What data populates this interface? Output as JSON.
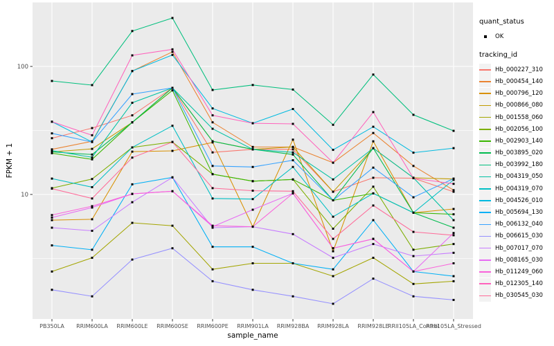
{
  "figure": {
    "background": "#FFFFFF",
    "panel_background": "#EBEBEB",
    "grid_color": "#FFFFFF",
    "tick_label_color": "#4D4D4D",
    "tick_mark_color": "#333333",
    "point_color": "#000000"
  },
  "axes": {
    "x": {
      "title": "sample_name",
      "tick_labels": [
        "PB350LA",
        "RRIM600LA",
        "RRIM600LE",
        "RRIM600SE",
        "RRIM600PE",
        "RRIM901LA",
        "RRIM928BA",
        "RRIM928LA",
        "RRIM928LE",
        "RRII105LA_Control",
        "RRII105LA_Stressed"
      ]
    },
    "y": {
      "title": "FPKM + 1",
      "tick_labels": [
        "100",
        "10"
      ],
      "tick_values": [
        100,
        10
      ],
      "scale": "log10"
    }
  },
  "legend": {
    "quant_status": {
      "title": "quant_status",
      "items": [
        {
          "label": "OK",
          "symbol": "filled-point",
          "color": "#000000"
        }
      ]
    },
    "tracking_id": {
      "title": "tracking_id",
      "items": [
        {
          "label": "Hb_000227_310",
          "color": "#F8766D"
        },
        {
          "label": "Hb_000454_140",
          "color": "#EA8331"
        },
        {
          "label": "Hb_000796_120",
          "color": "#D89000"
        },
        {
          "label": "Hb_000866_080",
          "color": "#C09B00"
        },
        {
          "label": "Hb_001558_060",
          "color": "#A3A500"
        },
        {
          "label": "Hb_002056_100",
          "color": "#7CAE00"
        },
        {
          "label": "Hb_002903_140",
          "color": "#39B600"
        },
        {
          "label": "Hb_003895_020",
          "color": "#00BB4E"
        },
        {
          "label": "Hb_003992_180",
          "color": "#00BF7D"
        },
        {
          "label": "Hb_004319_050",
          "color": "#00C1A3"
        },
        {
          "label": "Hb_004319_070",
          "color": "#00BFC4"
        },
        {
          "label": "Hb_004526_010",
          "color": "#00BAE0"
        },
        {
          "label": "Hb_005694_130",
          "color": "#00B0F6"
        },
        {
          "label": "Hb_006132_040",
          "color": "#35A2FF"
        },
        {
          "label": "Hb_006615_030",
          "color": "#9590FF"
        },
        {
          "label": "Hb_007017_070",
          "color": "#C77CFF"
        },
        {
          "label": "Hb_008165_030",
          "color": "#E76BF3"
        },
        {
          "label": "Hb_011249_060",
          "color": "#FA62DB"
        },
        {
          "label": "Hb_012305_140",
          "color": "#FF62BC"
        },
        {
          "label": "Hb_030545_030",
          "color": "#FF6A98"
        }
      ]
    }
  },
  "chart_data": {
    "type": "line",
    "title": "",
    "xlabel": "sample_name",
    "ylabel": "FPKM + 1",
    "yscale": "log10",
    "ylim": [
      1.15,
      318
    ],
    "y_major_gridlines": [
      100,
      10
    ],
    "y_minor_gridlines": [
      316.2,
      31.6,
      3.16
    ],
    "grid": true,
    "legend_position": "right",
    "point_shape": "filled-square",
    "quant_status_all": "OK",
    "categories": [
      "PB350LA",
      "RRIM600LA",
      "RRIM600LE",
      "RRIM600SE",
      "RRIM600PE",
      "RRIM901LA",
      "RRIM928BA",
      "RRIM928LA",
      "RRIM928LE",
      "RRII105LA_Control",
      "RRII105LA_Stressed"
    ],
    "series": [
      {
        "name": "Hb_000227_310",
        "color": "#F8766D",
        "values": [
          27.5,
          33,
          41.5,
          68,
          21.3,
          22.5,
          22.5,
          10.5,
          13.5,
          13.4,
          10.5
        ]
      },
      {
        "name": "Hb_000454_140",
        "color": "#EA8331",
        "values": [
          22.5,
          26,
          92,
          130,
          36.6,
          23.5,
          23.5,
          17.7,
          30.2,
          16.7,
          10.8
        ]
      },
      {
        "name": "Hb_000796_120",
        "color": "#D89000",
        "values": [
          6.3,
          6.4,
          21.6,
          21.9,
          25.5,
          5.6,
          26.8,
          3.6,
          26,
          7.2,
          7.7
        ]
      },
      {
        "name": "Hb_000866_080",
        "color": "#C09B00",
        "values": [
          21.5,
          22.7,
          36.6,
          68,
          26,
          22.5,
          23.5,
          10.5,
          23,
          13.5,
          13.2
        ]
      },
      {
        "name": "Hb_001558_060",
        "color": "#A3A500",
        "values": [
          2.5,
          3.2,
          6,
          5.7,
          2.6,
          2.9,
          2.9,
          2.3,
          3.2,
          2,
          2.1
        ]
      },
      {
        "name": "Hb_002056_100",
        "color": "#7CAE00",
        "values": [
          11.2,
          13.2,
          23.3,
          25.7,
          14.4,
          12.7,
          13.1,
          5.4,
          11.5,
          3.7,
          4.1
        ]
      },
      {
        "name": "Hb_002903_140",
        "color": "#39B600",
        "values": [
          21,
          18.8,
          36.6,
          65,
          14.4,
          12.7,
          13.1,
          9,
          10.2,
          7.2,
          7
        ]
      },
      {
        "name": "Hb_003895_020",
        "color": "#00BB4E",
        "values": [
          21.5,
          20.5,
          36.6,
          68,
          26,
          22.5,
          20.5,
          9,
          23,
          7.2,
          5.5
        ]
      },
      {
        "name": "Hb_003992_180",
        "color": "#00BF7D",
        "values": [
          77,
          71.5,
          189,
          239,
          65.5,
          71.6,
          66,
          35,
          86.4,
          41.9,
          31.4
        ]
      },
      {
        "name": "Hb_004319_050",
        "color": "#00C1A3",
        "values": [
          22,
          19.5,
          52,
          68,
          32.6,
          22.5,
          21.3,
          13.1,
          23,
          13.5,
          6.3
        ]
      },
      {
        "name": "Hb_004319_070",
        "color": "#00BFC4",
        "values": [
          13.3,
          11.4,
          23.3,
          34.4,
          9.3,
          9.2,
          16.4,
          6.7,
          10.2,
          7.2,
          13
        ]
      },
      {
        "name": "Hb_004526_010",
        "color": "#00BAE0",
        "values": [
          37,
          25.7,
          92,
          123,
          47,
          36,
          46.5,
          22.3,
          33.8,
          21.2,
          23
        ]
      },
      {
        "name": "Hb_005694_130",
        "color": "#00B0F6",
        "values": [
          4,
          3.7,
          12,
          13.6,
          3.9,
          3.9,
          2.9,
          2.6,
          6.3,
          2.5,
          2.3
        ]
      },
      {
        "name": "Hb_006132_040",
        "color": "#35A2FF",
        "values": [
          30,
          25.7,
          60.8,
          68,
          16.7,
          16.4,
          18.5,
          9,
          16.2,
          9.5,
          13.3
        ]
      },
      {
        "name": "Hb_006615_030",
        "color": "#9590FF",
        "values": [
          1.8,
          1.6,
          3.1,
          3.8,
          2.1,
          1.8,
          1.6,
          1.4,
          2.2,
          1.6,
          1.5
        ]
      },
      {
        "name": "Hb_007017_070",
        "color": "#C77CFF",
        "values": [
          5.5,
          5.2,
          8.7,
          13.6,
          5.5,
          5.6,
          4.9,
          3.2,
          4.1,
          3.3,
          3.5
        ]
      },
      {
        "name": "Hb_008165_030",
        "color": "#E76BF3",
        "values": [
          6.6,
          7.9,
          10.1,
          10.6,
          5.6,
          7.6,
          10.2,
          3.8,
          4.5,
          2.5,
          5
        ]
      },
      {
        "name": "Hb_011249_060",
        "color": "#FA62DB",
        "values": [
          6.9,
          8.1,
          10.1,
          10.6,
          5.7,
          5.6,
          10.2,
          3.8,
          4.5,
          2.5,
          2.9
        ]
      },
      {
        "name": "Hb_012305_140",
        "color": "#FF62BC",
        "values": [
          37,
          29,
          122,
          136,
          41.5,
          36,
          35.6,
          17.7,
          44,
          13.4,
          12.1
        ]
      },
      {
        "name": "Hb_030545_030",
        "color": "#FF6A98",
        "values": [
          11.1,
          9.3,
          19.4,
          25.7,
          11.2,
          10.7,
          10.6,
          4.5,
          8.2,
          5.1,
          4.8
        ]
      }
    ]
  }
}
